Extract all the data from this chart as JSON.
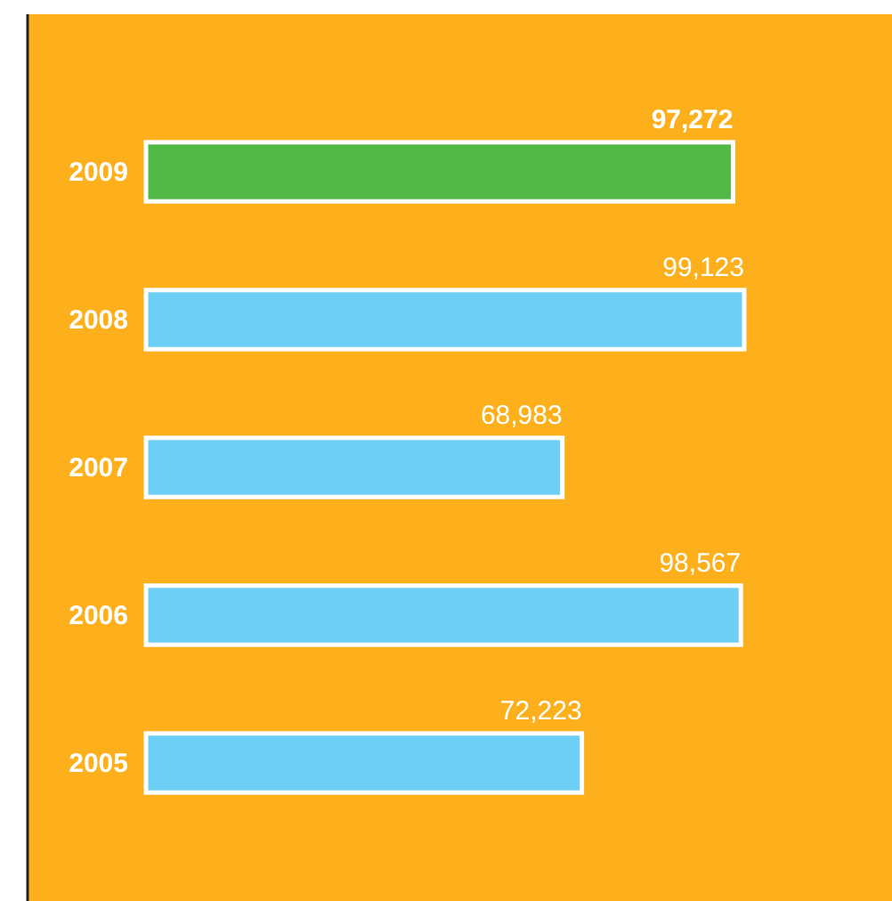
{
  "chart_data": {
    "type": "bar",
    "orientation": "horizontal",
    "categories": [
      "2009",
      "2008",
      "2007",
      "2006",
      "2005"
    ],
    "values": [
      97272,
      99123,
      68983,
      98567,
      72223
    ],
    "value_labels": [
      "97,272",
      "99,123",
      "68,983",
      "98,567",
      "72,223"
    ],
    "colors": [
      "#52b947",
      "#6dcff6",
      "#6dcff6",
      "#6dcff6",
      "#6dcff6"
    ],
    "tick_labels": "y"
  }
}
